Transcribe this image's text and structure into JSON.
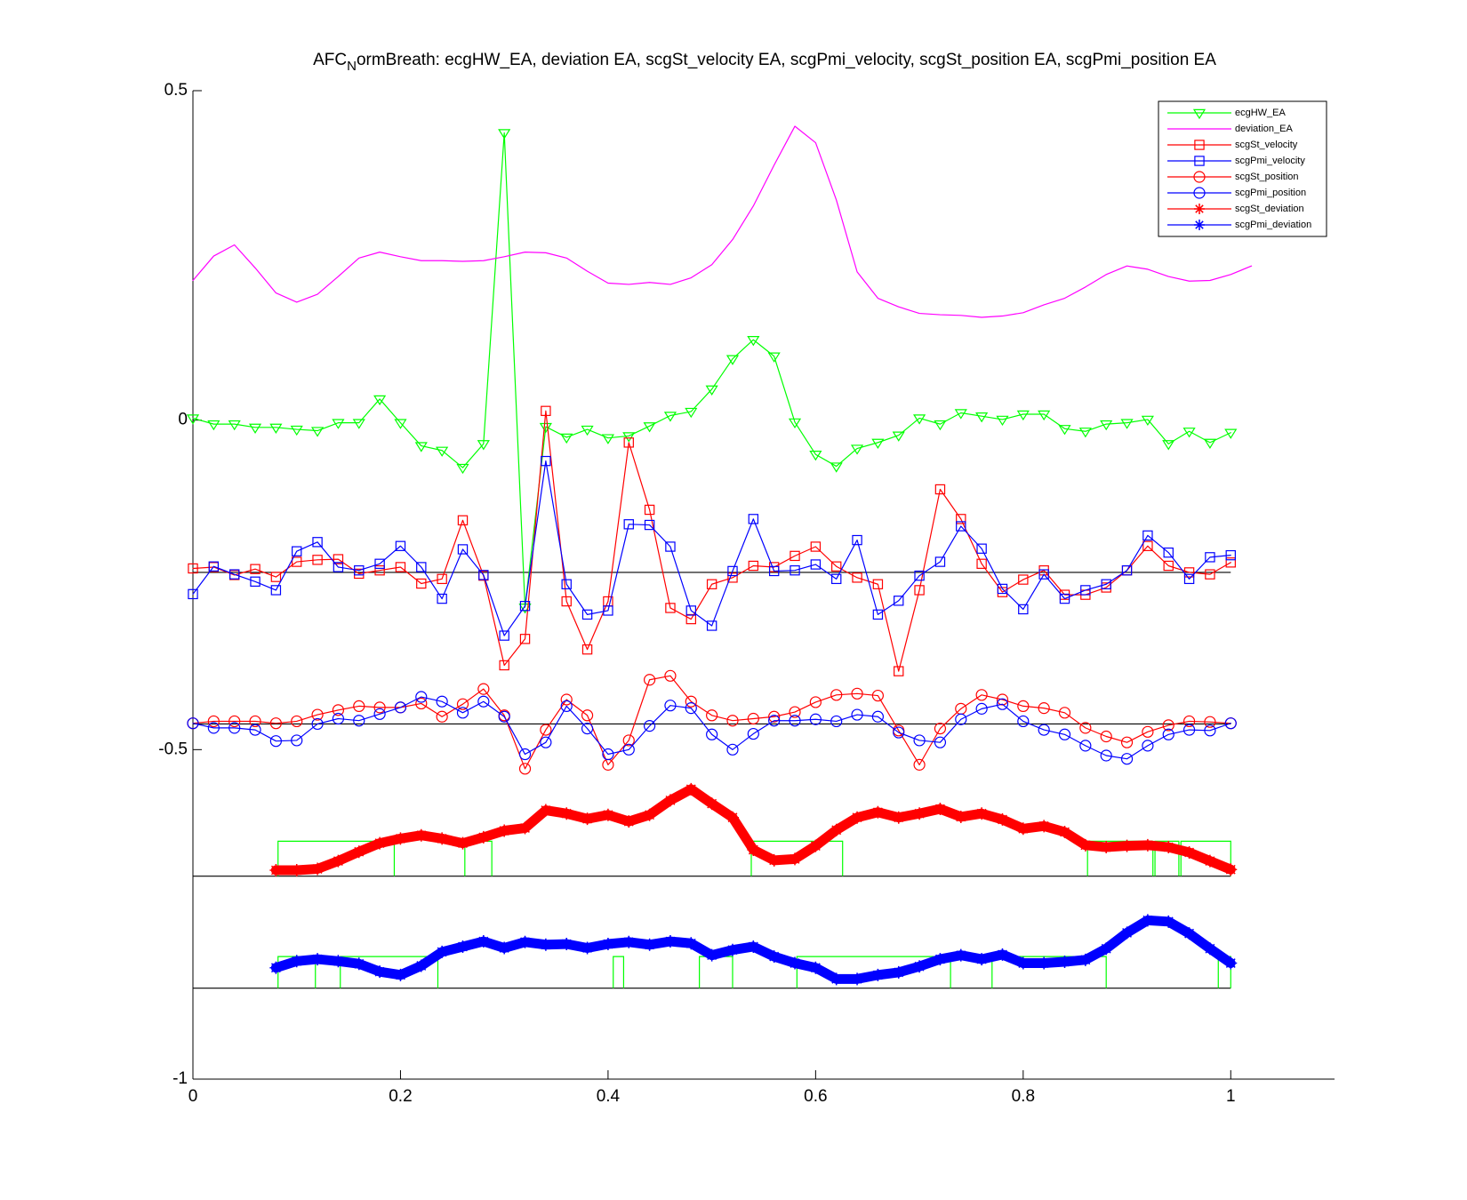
{
  "chart_data": {
    "type": "line",
    "title": [
      "AFC",
      "N",
      "ormBreath: ecgHW_EA, deviation EA, scgSt_velocity EA, scgPmi_velocity, scgSt_position EA, scgPmi_position EA"
    ],
    "xlim": [
      0,
      1.1
    ],
    "ylim": [
      -1,
      0.5
    ],
    "xticks": [
      0,
      0.2,
      0.4,
      0.6,
      0.8,
      1
    ],
    "yticks": [
      -1,
      -0.5,
      0,
      0.5
    ],
    "legend": "northeast",
    "grid": false,
    "x": [
      0,
      0.02,
      0.04,
      0.06,
      0.08,
      0.1,
      0.12,
      0.14,
      0.16,
      0.18,
      0.2,
      0.22,
      0.24,
      0.26,
      0.28,
      0.3,
      0.32,
      0.34,
      0.36,
      0.38,
      0.4,
      0.42,
      0.44,
      0.46,
      0.48,
      0.5,
      0.52,
      0.54,
      0.56,
      0.58,
      0.6,
      0.62,
      0.64,
      0.66,
      0.68,
      0.7,
      0.72,
      0.74,
      0.76,
      0.78,
      0.8,
      0.82,
      0.84,
      0.86,
      0.88,
      0.9,
      0.92,
      0.94,
      0.96,
      0.98,
      1
    ],
    "series": [
      {
        "name": "ecgHW_EA",
        "color": "#00ff00",
        "marker": "v",
        "values": [
          0.003,
          -0.006,
          -0.006,
          -0.011,
          -0.011,
          -0.014,
          -0.016,
          -0.004,
          -0.004,
          0.032,
          -0.004,
          -0.039,
          -0.046,
          -0.072,
          -0.036,
          0.436,
          -0.284,
          -0.01,
          -0.026,
          -0.014,
          -0.027,
          -0.024,
          -0.009,
          0.007,
          0.013,
          0.047,
          0.093,
          0.122,
          0.097,
          -0.003,
          -0.052,
          -0.07,
          -0.043,
          -0.034,
          -0.023,
          0.003,
          -0.006,
          0.011,
          0.006,
          0.001,
          0.009,
          0.009,
          -0.013,
          -0.017,
          -0.006,
          -0.004,
          0.001,
          -0.036,
          -0.017,
          -0.034,
          -0.019
        ]
      },
      {
        "name": "deviation_EA",
        "color": "#ff00ff",
        "marker": "none",
        "x": [
          0,
          0.02,
          0.04,
          0.06,
          0.08,
          0.1,
          0.12,
          0.14,
          0.16,
          0.18,
          0.2,
          0.22,
          0.24,
          0.26,
          0.28,
          0.3,
          0.32,
          0.34,
          0.36,
          0.38,
          0.4,
          0.42,
          0.44,
          0.46,
          0.48,
          0.5,
          0.52,
          0.54,
          0.56,
          0.58,
          0.6,
          0.62,
          0.64,
          0.66,
          0.68,
          0.7,
          0.72,
          0.74,
          0.76,
          0.78,
          0.8,
          0.82,
          0.84,
          0.86,
          0.88,
          0.9,
          0.92,
          0.94,
          0.96,
          0.98,
          1,
          1.02
        ],
        "values": [
          0.212,
          0.249,
          0.266,
          0.231,
          0.193,
          0.179,
          0.191,
          0.218,
          0.246,
          0.255,
          0.248,
          0.242,
          0.242,
          0.241,
          0.242,
          0.248,
          0.255,
          0.254,
          0.246,
          0.226,
          0.208,
          0.206,
          0.209,
          0.206,
          0.216,
          0.236,
          0.274,
          0.325,
          0.387,
          0.446,
          0.421,
          0.334,
          0.225,
          0.185,
          0.172,
          0.162,
          0.16,
          0.159,
          0.156,
          0.158,
          0.163,
          0.175,
          0.185,
          0.202,
          0.221,
          0.234,
          0.229,
          0.218,
          0.211,
          0.212,
          0.221,
          0.234
        ]
      },
      {
        "name": "scgSt_velocity",
        "color": "#ff0000",
        "marker": "s",
        "values": [
          -0.225,
          -0.223,
          -0.235,
          -0.226,
          -0.238,
          -0.215,
          -0.212,
          -0.211,
          -0.233,
          -0.228,
          -0.223,
          -0.248,
          -0.241,
          -0.152,
          -0.236,
          -0.372,
          -0.332,
          0.014,
          -0.275,
          -0.348,
          -0.275,
          -0.034,
          -0.136,
          -0.285,
          -0.302,
          -0.249,
          -0.239,
          -0.221,
          -0.223,
          -0.206,
          -0.192,
          -0.222,
          -0.239,
          -0.249,
          -0.381,
          -0.258,
          -0.105,
          -0.15,
          -0.218,
          -0.261,
          -0.242,
          -0.228,
          -0.265,
          -0.265,
          -0.254,
          -0.228,
          -0.191,
          -0.221,
          -0.231,
          -0.234,
          -0.216
        ]
      },
      {
        "name": "scgPmi_velocity",
        "color": "#0000ff",
        "marker": "s",
        "values": [
          -0.264,
          -0.222,
          -0.234,
          -0.245,
          -0.258,
          -0.199,
          -0.185,
          -0.223,
          -0.228,
          -0.218,
          -0.191,
          -0.223,
          -0.271,
          -0.196,
          -0.235,
          -0.327,
          -0.282,
          -0.062,
          -0.249,
          -0.295,
          -0.289,
          -0.158,
          -0.159,
          -0.192,
          -0.289,
          -0.312,
          -0.229,
          -0.15,
          -0.229,
          -0.228,
          -0.219,
          -0.241,
          -0.182,
          -0.295,
          -0.274,
          -0.236,
          -0.215,
          -0.161,
          -0.195,
          -0.256,
          -0.287,
          -0.234,
          -0.271,
          -0.258,
          -0.249,
          -0.228,
          -0.175,
          -0.201,
          -0.241,
          -0.208,
          -0.205
        ]
      },
      {
        "name": "scgSt_position",
        "color": "#ff0000",
        "marker": "o",
        "values": [
          -0.46,
          -0.457,
          -0.457,
          -0.457,
          -0.46,
          -0.457,
          -0.447,
          -0.44,
          -0.434,
          -0.436,
          -0.436,
          -0.43,
          -0.45,
          -0.431,
          -0.408,
          -0.448,
          -0.529,
          -0.47,
          -0.424,
          -0.448,
          -0.523,
          -0.486,
          -0.394,
          -0.388,
          -0.427,
          -0.448,
          -0.456,
          -0.453,
          -0.45,
          -0.443,
          -0.428,
          -0.417,
          -0.415,
          -0.418,
          -0.471,
          -0.523,
          -0.468,
          -0.438,
          -0.417,
          -0.424,
          -0.434,
          -0.437,
          -0.444,
          -0.467,
          -0.48,
          -0.489,
          -0.473,
          -0.463,
          -0.457,
          -0.458,
          -0.46
        ]
      },
      {
        "name": "scgPmi_position",
        "color": "#0000ff",
        "marker": "o",
        "values": [
          -0.46,
          -0.467,
          -0.467,
          -0.47,
          -0.487,
          -0.486,
          -0.461,
          -0.453,
          -0.456,
          -0.446,
          -0.436,
          -0.42,
          -0.427,
          -0.444,
          -0.427,
          -0.45,
          -0.507,
          -0.489,
          -0.434,
          -0.468,
          -0.507,
          -0.5,
          -0.464,
          -0.433,
          -0.437,
          -0.477,
          -0.5,
          -0.476,
          -0.456,
          -0.456,
          -0.454,
          -0.457,
          -0.447,
          -0.45,
          -0.474,
          -0.486,
          -0.489,
          -0.454,
          -0.438,
          -0.431,
          -0.457,
          -0.47,
          -0.477,
          -0.494,
          -0.509,
          -0.514,
          -0.494,
          -0.477,
          -0.47,
          -0.471,
          -0.46
        ]
      },
      {
        "name": "scgSt_deviation",
        "color": "#ff0000",
        "marker": "*",
        "thick": true,
        "x": [
          0.08,
          0.1,
          0.12,
          0.14,
          0.16,
          0.18,
          0.2,
          0.22,
          0.24,
          0.26,
          0.28,
          0.3,
          0.32,
          0.34,
          0.36,
          0.38,
          0.4,
          0.42,
          0.44,
          0.46,
          0.48,
          0.5,
          0.52,
          0.54,
          0.56,
          0.58,
          0.6,
          0.62,
          0.64,
          0.66,
          0.68,
          0.7,
          0.72,
          0.74,
          0.76,
          0.78,
          0.8,
          0.82,
          0.84,
          0.86,
          0.88,
          0.9,
          0.92,
          0.94,
          0.96,
          0.98,
          1
        ],
        "values": [
          -0.683,
          -0.683,
          -0.681,
          -0.669,
          -0.655,
          -0.642,
          -0.635,
          -0.63,
          -0.635,
          -0.642,
          -0.633,
          -0.623,
          -0.619,
          -0.592,
          -0.597,
          -0.605,
          -0.599,
          -0.609,
          -0.599,
          -0.577,
          -0.56,
          -0.582,
          -0.603,
          -0.652,
          -0.668,
          -0.666,
          -0.646,
          -0.622,
          -0.603,
          -0.595,
          -0.603,
          -0.597,
          -0.59,
          -0.602,
          -0.597,
          -0.606,
          -0.62,
          -0.616,
          -0.625,
          -0.645,
          -0.648,
          -0.646,
          -0.645,
          -0.648,
          -0.656,
          -0.669,
          -0.682
        ]
      },
      {
        "name": "scgPmi_deviation",
        "color": "#0000ff",
        "marker": "*",
        "thick": true,
        "x": [
          0.08,
          0.1,
          0.12,
          0.14,
          0.16,
          0.18,
          0.2,
          0.22,
          0.24,
          0.26,
          0.28,
          0.3,
          0.32,
          0.34,
          0.36,
          0.38,
          0.4,
          0.42,
          0.44,
          0.46,
          0.48,
          0.5,
          0.52,
          0.54,
          0.56,
          0.58,
          0.6,
          0.62,
          0.64,
          0.66,
          0.68,
          0.7,
          0.72,
          0.74,
          0.76,
          0.78,
          0.8,
          0.82,
          0.84,
          0.86,
          0.88,
          0.9,
          0.92,
          0.94,
          0.96,
          0.98,
          1
        ],
        "values": [
          -0.831,
          -0.821,
          -0.818,
          -0.821,
          -0.825,
          -0.837,
          -0.842,
          -0.828,
          -0.807,
          -0.799,
          -0.791,
          -0.801,
          -0.792,
          -0.796,
          -0.795,
          -0.801,
          -0.795,
          -0.792,
          -0.796,
          -0.791,
          -0.794,
          -0.812,
          -0.804,
          -0.799,
          -0.814,
          -0.824,
          -0.831,
          -0.848,
          -0.848,
          -0.842,
          -0.838,
          -0.829,
          -0.818,
          -0.812,
          -0.818,
          -0.811,
          -0.824,
          -0.824,
          -0.822,
          -0.819,
          -0.802,
          -0.778,
          -0.759,
          -0.761,
          -0.779,
          -0.802,
          -0.824
        ]
      }
    ],
    "hlines": [
      {
        "value": -0.231,
        "xlim": [
          0,
          1
        ]
      },
      {
        "value": -0.461,
        "xlim": [
          0,
          1
        ]
      },
      {
        "value": -0.692,
        "xlim": [
          0,
          1
        ]
      },
      {
        "value": -0.862,
        "xlim": [
          0,
          1
        ]
      }
    ],
    "pulse_trains": [
      {
        "color": "#00ff00",
        "low": -0.692,
        "high": -0.639,
        "intervals": [
          [
            0.082,
            0.194
          ],
          [
            0.262,
            0.288
          ],
          [
            0.538,
            0.626
          ],
          [
            0.862,
            0.925
          ],
          [
            0.927,
            0.95
          ],
          [
            0.952,
            1
          ]
        ]
      },
      {
        "color": "#00ff00",
        "low": -0.862,
        "high": -0.814,
        "intervals": [
          [
            0.082,
            0.118
          ],
          [
            0.142,
            0.236
          ],
          [
            0.405,
            0.415
          ],
          [
            0.488,
            0.52
          ],
          [
            0.582,
            0.73
          ],
          [
            0.77,
            0.88
          ],
          [
            0.988,
            1
          ]
        ]
      }
    ]
  }
}
